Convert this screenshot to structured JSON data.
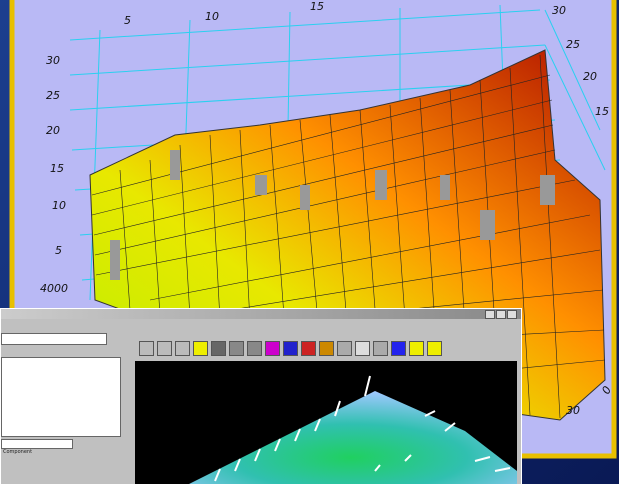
{
  "plot": {
    "top_axis_labels": [
      "5",
      "10",
      "15",
      "30"
    ],
    "left_axis_labels": [
      "30",
      "25",
      "20",
      "15",
      "10",
      "5",
      "4000"
    ],
    "right_axis_labels": [
      "25",
      "20",
      "15"
    ],
    "bottom_right_labels": [
      "0",
      "30"
    ]
  },
  "window": {
    "status_text": "Component"
  }
}
